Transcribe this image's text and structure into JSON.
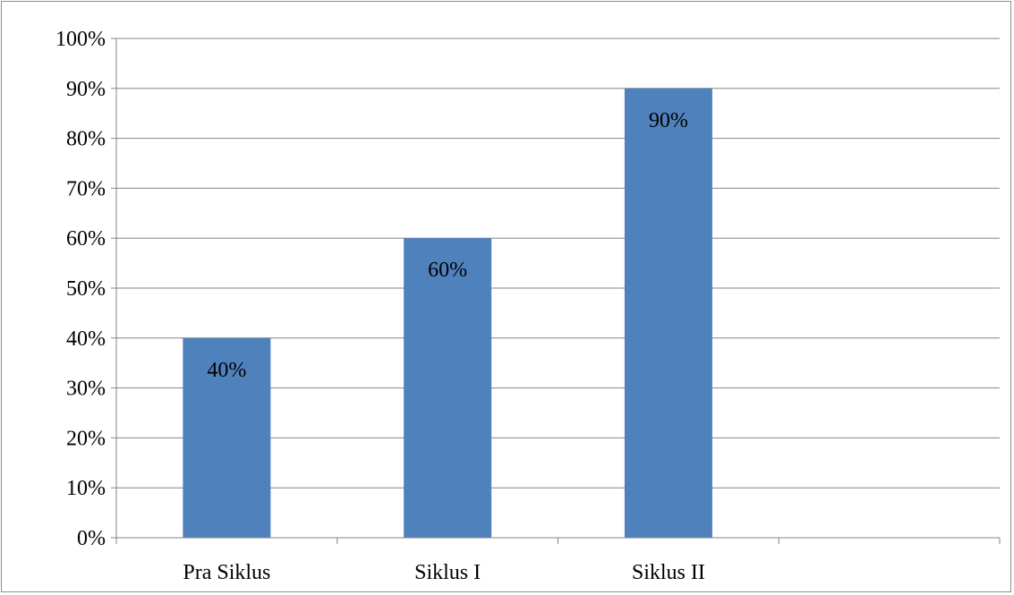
{
  "chart_data": {
    "type": "bar",
    "title": "",
    "xlabel": "",
    "ylabel": "",
    "categories": [
      "Pra Siklus",
      "Siklus I",
      "Siklus II",
      ""
    ],
    "values": [
      40,
      60,
      90,
      null
    ],
    "data_labels": [
      "40%",
      "60%",
      "90%",
      ""
    ],
    "ylim": [
      0,
      100
    ],
    "y_ticks": [
      0,
      10,
      20,
      30,
      40,
      50,
      60,
      70,
      80,
      90,
      100
    ],
    "y_tick_labels": [
      "0%",
      "10%",
      "20%",
      "30%",
      "40%",
      "50%",
      "60%",
      "70%",
      "80%",
      "90%",
      "100%"
    ],
    "grid": true,
    "legend": "none",
    "colors": {
      "bar": "#4f81bd",
      "grid": "#868686",
      "axis": "#868686",
      "text": "#000000",
      "border": "#8c8c8c"
    }
  }
}
